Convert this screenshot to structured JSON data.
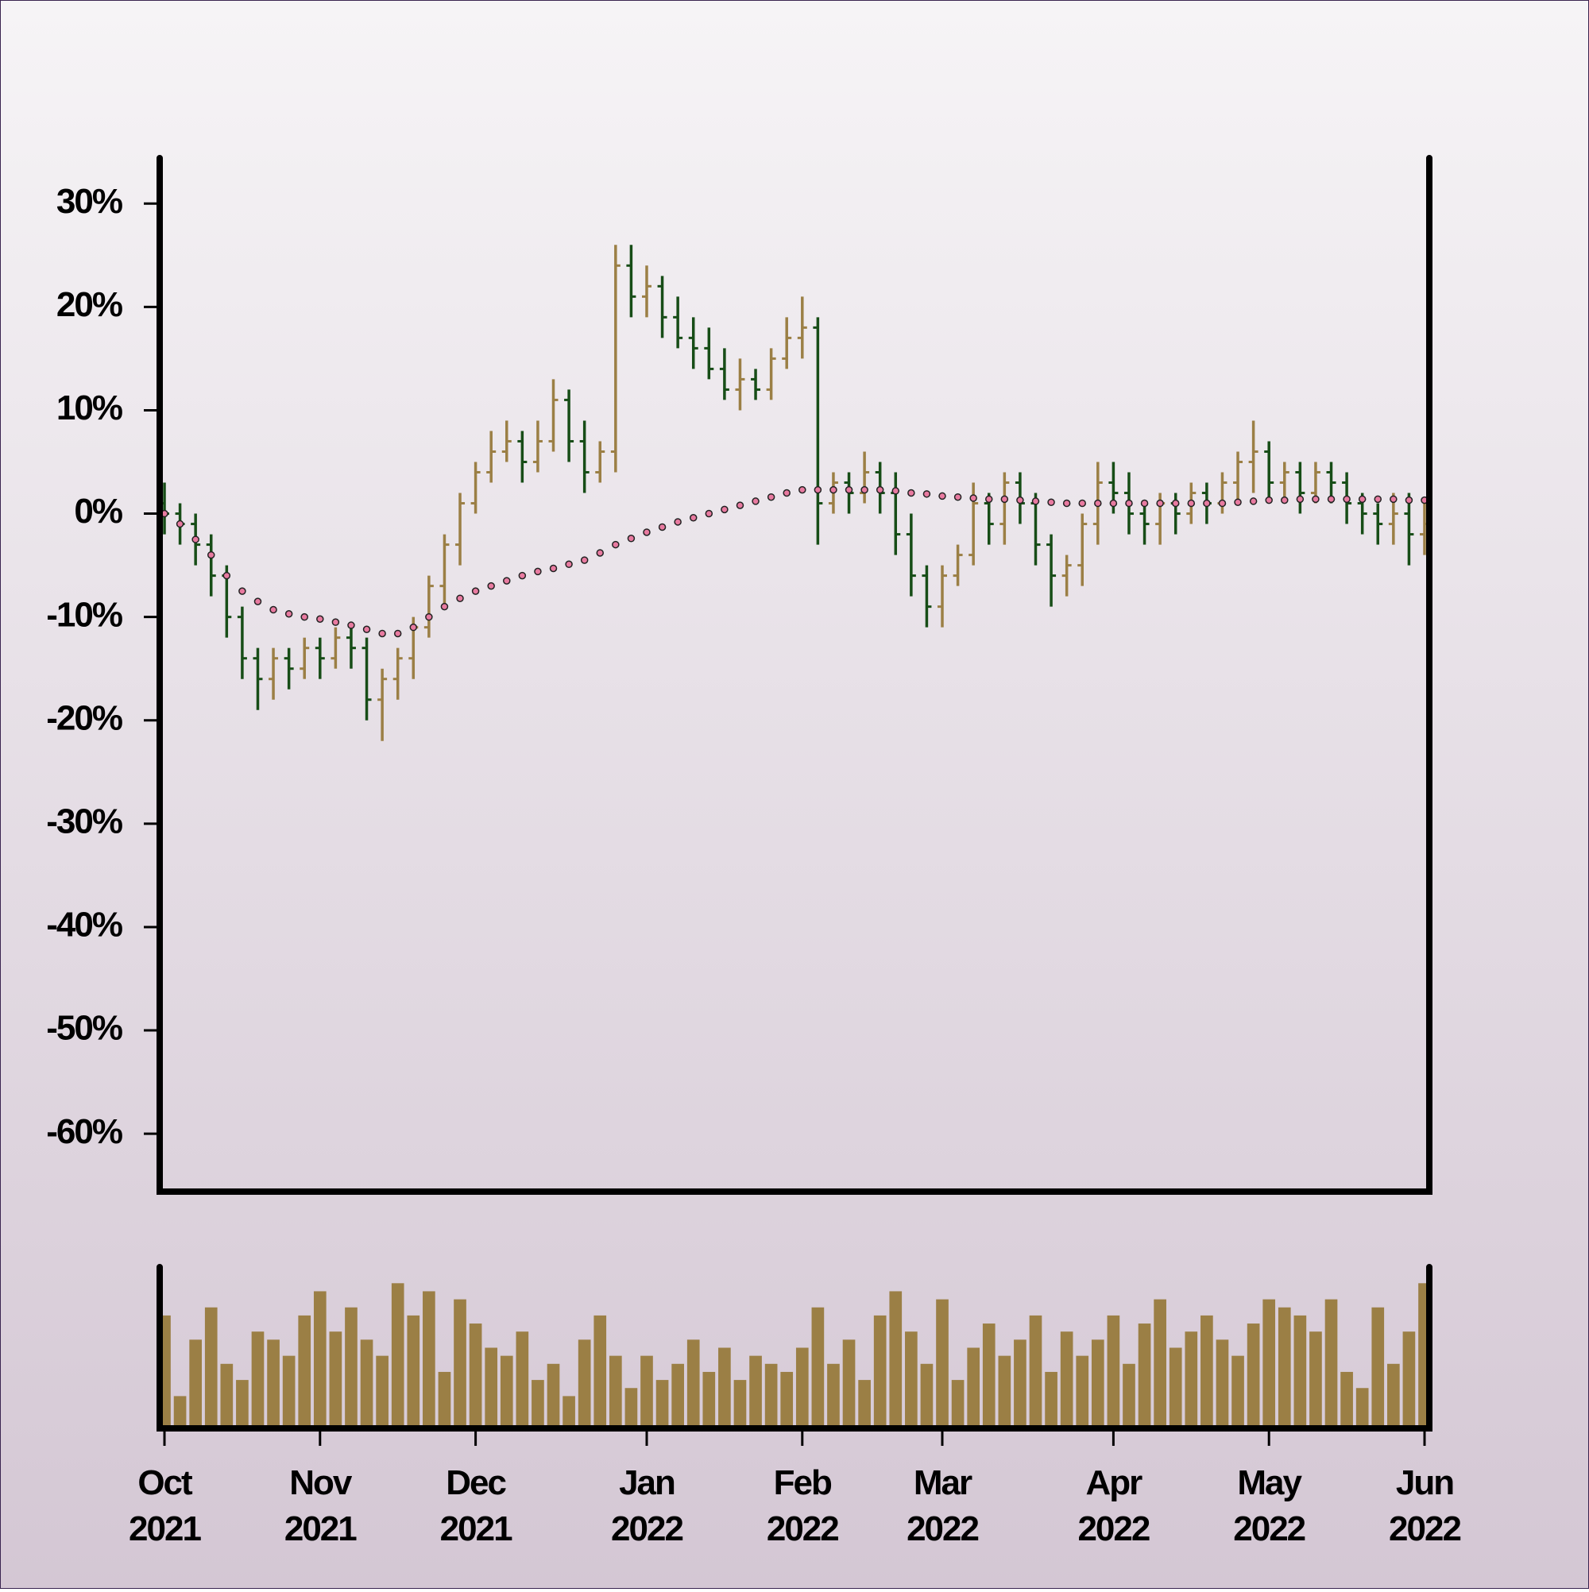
{
  "chart_data": [
    {
      "type": "ohlc",
      "categories": [
        "Oct 2021",
        null,
        null,
        null,
        null,
        null,
        null,
        null,
        null,
        null,
        "Nov 2021",
        null,
        null,
        null,
        null,
        null,
        null,
        null,
        null,
        null,
        "Dec 2021",
        null,
        null,
        null,
        null,
        null,
        null,
        null,
        null,
        null,
        null,
        "Jan 2022",
        null,
        null,
        null,
        null,
        null,
        null,
        null,
        null,
        null,
        "Feb 2022",
        null,
        null,
        null,
        null,
        null,
        null,
        null,
        null,
        "Mar 2022",
        null,
        null,
        null,
        null,
        null,
        null,
        null,
        null,
        null,
        null,
        "Apr 2022",
        null,
        null,
        null,
        null,
        null,
        null,
        null,
        null,
        null,
        "May 2022",
        null,
        null,
        null,
        null,
        null,
        null,
        null,
        null,
        null,
        "Jun 2022"
      ],
      "open": [
        1,
        0,
        -1,
        -3,
        -6,
        -10,
        -14,
        -16,
        -14,
        -15,
        -13,
        -14,
        -12,
        -13,
        -18,
        -16,
        -14,
        -11,
        -7,
        -3,
        1,
        4,
        6,
        7,
        5,
        7,
        11,
        7,
        4,
        6,
        24,
        21,
        22,
        19,
        17,
        16,
        14,
        12,
        13,
        12,
        15,
        17,
        18,
        1,
        3,
        2,
        4,
        2,
        -2,
        -6,
        -9,
        -6,
        -4,
        1,
        -1,
        3,
        1,
        -3,
        -6,
        -5,
        -1,
        3,
        2,
        0,
        -1,
        1,
        0,
        2,
        1,
        3,
        5,
        6,
        3,
        4,
        2,
        4,
        3,
        1,
        0,
        -1,
        0,
        -2
      ],
      "high": [
        3,
        1,
        0,
        -2,
        -5,
        -9,
        -13,
        -13,
        -13,
        -12,
        -12,
        -11,
        -11,
        -12,
        -15,
        -13,
        -10,
        -6,
        -2,
        2,
        5,
        8,
        9,
        8,
        9,
        13,
        12,
        9,
        7,
        26,
        26,
        24,
        23,
        21,
        19,
        18,
        16,
        15,
        14,
        16,
        19,
        21,
        19,
        4,
        4,
        6,
        5,
        4,
        0,
        -5,
        -5,
        -3,
        3,
        2,
        4,
        4,
        2,
        -2,
        -4,
        0,
        5,
        5,
        4,
        1,
        2,
        2,
        3,
        3,
        4,
        6,
        9,
        7,
        5,
        5,
        5,
        5,
        4,
        2,
        1,
        2,
        2,
        1
      ],
      "low": [
        -2,
        -3,
        -5,
        -8,
        -12,
        -16,
        -19,
        -18,
        -17,
        -16,
        -16,
        -15,
        -15,
        -20,
        -22,
        -18,
        -16,
        -12,
        -9,
        -5,
        0,
        3,
        5,
        3,
        4,
        6,
        5,
        2,
        3,
        4,
        19,
        19,
        17,
        16,
        14,
        13,
        11,
        10,
        11,
        11,
        14,
        15,
        -3,
        0,
        0,
        1,
        0,
        -4,
        -8,
        -11,
        -11,
        -7,
        -5,
        -3,
        -3,
        -1,
        -5,
        -9,
        -8,
        -7,
        -3,
        0,
        -2,
        -3,
        -3,
        -2,
        -1,
        -1,
        0,
        1,
        2,
        1,
        1,
        0,
        1,
        1,
        -1,
        -2,
        -3,
        -3,
        -5,
        -4
      ],
      "close": [
        0,
        -1,
        -3,
        -6,
        -10,
        -14,
        -16,
        -14,
        -15,
        -13,
        -14,
        -12,
        -13,
        -18,
        -16,
        -14,
        -11,
        -7,
        -3,
        1,
        4,
        6,
        7,
        5,
        7,
        11,
        7,
        4,
        6,
        24,
        21,
        22,
        19,
        17,
        16,
        14,
        12,
        13,
        12,
        15,
        17,
        18,
        1,
        3,
        2,
        4,
        2,
        -2,
        -6,
        -9,
        -6,
        -4,
        1,
        -1,
        3,
        1,
        -3,
        -6,
        -5,
        -1,
        3,
        2,
        0,
        -1,
        1,
        0,
        2,
        1,
        3,
        5,
        6,
        3,
        4,
        2,
        4,
        3,
        1,
        0,
        -1,
        0,
        -2,
        -1
      ],
      "up_color": "#9b7f45",
      "down_color": "#174d17",
      "ma": {
        "color": "#e87aa0",
        "values": [
          0,
          -1,
          -2.5,
          -4,
          -6,
          -7.5,
          -8.5,
          -9.3,
          -9.7,
          -10,
          -10.2,
          -10.5,
          -10.8,
          -11.2,
          -11.6,
          -11.6,
          -11,
          -10,
          -9,
          -8.2,
          -7.5,
          -7,
          -6.5,
          -6,
          -5.6,
          -5.3,
          -4.9,
          -4.5,
          -3.8,
          -3,
          -2.4,
          -1.8,
          -1.3,
          -0.8,
          -0.4,
          0,
          0.4,
          0.8,
          1.2,
          1.6,
          2,
          2.3,
          2.3,
          2.3,
          2.3,
          2.3,
          2.3,
          2.2,
          2,
          1.9,
          1.7,
          1.6,
          1.5,
          1.4,
          1.4,
          1.3,
          1.2,
          1.1,
          1,
          1,
          1,
          1,
          1,
          1,
          1,
          1,
          1,
          1,
          1,
          1.1,
          1.2,
          1.3,
          1.3,
          1.4,
          1.4,
          1.4,
          1.4,
          1.4,
          1.4,
          1.4,
          1.3,
          1.3
        ]
      },
      "ylim": [
        -65.6,
        34.4
      ],
      "yticks": [
        {
          "value": -60,
          "label": "-60%"
        },
        {
          "value": -50,
          "label": "-50%"
        },
        {
          "value": -40,
          "label": "-40%"
        },
        {
          "value": -30,
          "label": "-30%"
        },
        {
          "value": -20,
          "label": "-20%"
        },
        {
          "value": -10,
          "label": "-10%"
        },
        {
          "value": 0,
          "label": "0%"
        },
        {
          "value": 10,
          "label": "10%"
        },
        {
          "value": 20,
          "label": "20%"
        },
        {
          "value": 30,
          "label": "30%"
        }
      ]
    },
    {
      "type": "bar",
      "values": [
        70,
        20,
        55,
        75,
        40,
        30,
        60,
        55,
        45,
        70,
        85,
        60,
        75,
        55,
        45,
        90,
        70,
        85,
        35,
        80,
        65,
        50,
        45,
        60,
        30,
        40,
        20,
        55,
        70,
        45,
        25,
        45,
        30,
        40,
        55,
        35,
        50,
        30,
        45,
        40,
        35,
        50,
        75,
        40,
        55,
        30,
        70,
        85,
        60,
        40,
        80,
        30,
        50,
        65,
        45,
        55,
        70,
        35,
        60,
        45,
        55,
        70,
        40,
        65,
        80,
        50,
        60,
        70,
        55,
        45,
        65,
        80,
        75,
        70,
        60,
        80,
        35,
        25,
        75,
        40,
        60,
        90
      ],
      "color": "#9b7f45",
      "ylim": [
        0,
        100
      ]
    }
  ]
}
